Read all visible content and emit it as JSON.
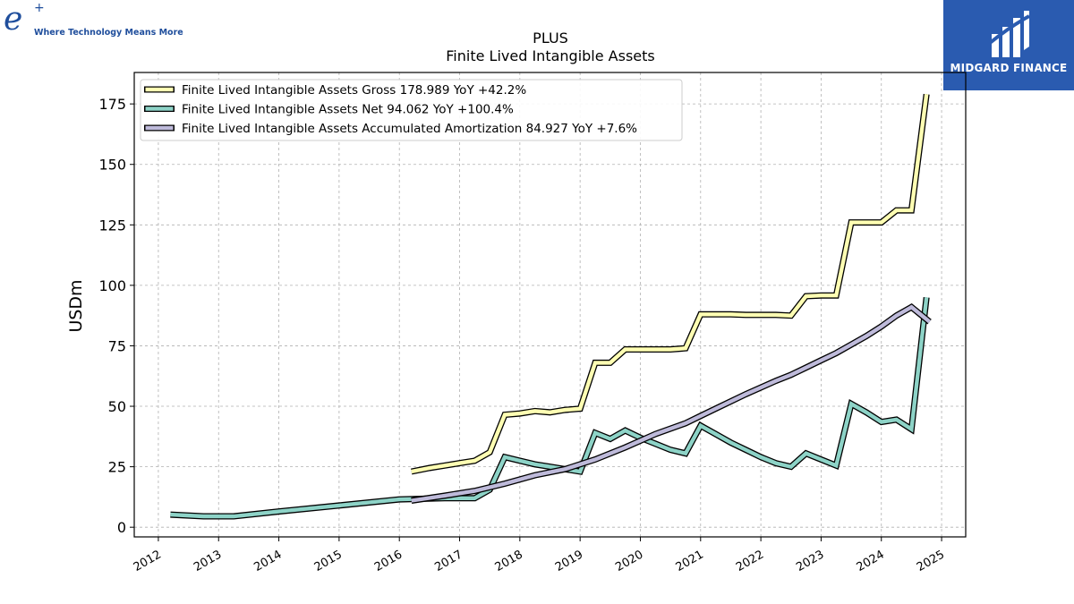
{
  "brand_left": {
    "mark": "e",
    "sup": "+",
    "tagline": "Where Technology Means More"
  },
  "brand_right": {
    "name": "MIDGARD FINANCE",
    "bg": "#2a5bb0"
  },
  "chart_data": {
    "type": "line",
    "title": "PLUS",
    "subtitle": "Finite Lived Intangible Assets",
    "ylabel": "USDm",
    "xlabel": "",
    "xlim": [
      2011.6,
      2025.4
    ],
    "ylim": [
      -4,
      188
    ],
    "yticks": [
      0,
      25,
      50,
      75,
      100,
      125,
      150,
      175
    ],
    "xticks": [
      2012,
      2013,
      2014,
      2015,
      2016,
      2017,
      2018,
      2019,
      2020,
      2021,
      2022,
      2023,
      2024,
      2025
    ],
    "grid": true,
    "legend_position": "top-left",
    "series": [
      {
        "name": "Finite Lived Intangible Assets Gross  178.989 YoY +42.2%",
        "color": "#ffffb3",
        "points": [
          [
            2016.2,
            23
          ],
          [
            2016.5,
            24.5
          ],
          [
            2016.75,
            25.5
          ],
          [
            2017.0,
            26.5
          ],
          [
            2017.25,
            27.5
          ],
          [
            2017.5,
            31
          ],
          [
            2017.75,
            46.5
          ],
          [
            2018.0,
            47
          ],
          [
            2018.25,
            48
          ],
          [
            2018.5,
            47.5
          ],
          [
            2018.75,
            48.5
          ],
          [
            2019.0,
            49
          ],
          [
            2019.25,
            68
          ],
          [
            2019.5,
            68
          ],
          [
            2019.75,
            73.5
          ],
          [
            2020.0,
            73.5
          ],
          [
            2020.25,
            73.5
          ],
          [
            2020.5,
            73.5
          ],
          [
            2020.75,
            74
          ],
          [
            2021.0,
            88
          ],
          [
            2021.25,
            88
          ],
          [
            2021.5,
            88
          ],
          [
            2021.75,
            87.8
          ],
          [
            2022.0,
            87.8
          ],
          [
            2022.25,
            87.8
          ],
          [
            2022.5,
            87.5
          ],
          [
            2022.75,
            95.5
          ],
          [
            2023.0,
            95.8
          ],
          [
            2023.25,
            95.8
          ],
          [
            2023.5,
            126
          ],
          [
            2023.75,
            126
          ],
          [
            2024.0,
            126
          ],
          [
            2024.25,
            131
          ],
          [
            2024.5,
            131
          ],
          [
            2024.75,
            179
          ]
        ]
      },
      {
        "name": "Finite Lived Intangible Assets Net  94.062 YoY +100.4%",
        "color": "#8dd3c7",
        "points": [
          [
            2012.2,
            5.2
          ],
          [
            2012.75,
            4.5
          ],
          [
            2013.25,
            4.5
          ],
          [
            2014.0,
            6.5
          ],
          [
            2015.0,
            9
          ],
          [
            2016.0,
            11.5
          ],
          [
            2016.75,
            12
          ],
          [
            2017.25,
            12
          ],
          [
            2017.5,
            15.5
          ],
          [
            2017.75,
            29
          ],
          [
            2018.0,
            27.5
          ],
          [
            2018.25,
            26
          ],
          [
            2018.5,
            25
          ],
          [
            2018.75,
            24
          ],
          [
            2019.0,
            23
          ],
          [
            2019.25,
            39
          ],
          [
            2019.5,
            36.5
          ],
          [
            2019.75,
            40
          ],
          [
            2020.0,
            37
          ],
          [
            2020.25,
            34.5
          ],
          [
            2020.5,
            32
          ],
          [
            2020.75,
            30.5
          ],
          [
            2021.0,
            42
          ],
          [
            2021.25,
            38.5
          ],
          [
            2021.5,
            35
          ],
          [
            2021.75,
            32
          ],
          [
            2022.0,
            29
          ],
          [
            2022.25,
            26.5
          ],
          [
            2022.5,
            25
          ],
          [
            2022.75,
            30.5
          ],
          [
            2023.0,
            28
          ],
          [
            2023.25,
            25.5
          ],
          [
            2023.5,
            51
          ],
          [
            2023.75,
            47.5
          ],
          [
            2024.0,
            43.5
          ],
          [
            2024.25,
            44.5
          ],
          [
            2024.5,
            40.5
          ],
          [
            2024.75,
            95
          ]
        ]
      },
      {
        "name": "Finite Lived Intangible Assets Accumulated Amortization  84.927 YoY +7.6%",
        "color": "#bebada",
        "points": [
          [
            2016.2,
            11
          ],
          [
            2016.75,
            13
          ],
          [
            2017.25,
            15
          ],
          [
            2017.75,
            18
          ],
          [
            2018.25,
            21.5
          ],
          [
            2018.75,
            24
          ],
          [
            2019.25,
            28
          ],
          [
            2019.75,
            33
          ],
          [
            2020.25,
            38.5
          ],
          [
            2020.75,
            43
          ],
          [
            2021.0,
            46
          ],
          [
            2021.25,
            49
          ],
          [
            2021.75,
            55
          ],
          [
            2022.25,
            60.5
          ],
          [
            2022.5,
            63
          ],
          [
            2022.75,
            66
          ],
          [
            2023.0,
            69
          ],
          [
            2023.25,
            72
          ],
          [
            2023.75,
            79
          ],
          [
            2024.0,
            83
          ],
          [
            2024.25,
            87.5
          ],
          [
            2024.5,
            91
          ],
          [
            2024.8,
            84.927
          ]
        ]
      }
    ]
  }
}
